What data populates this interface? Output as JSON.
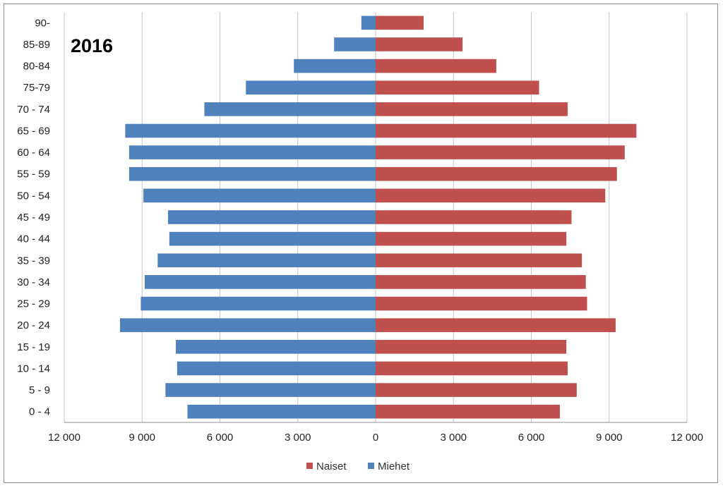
{
  "chart_data": {
    "type": "bar",
    "orientation": "horizontal-population-pyramid",
    "year_label": "2016",
    "categories": [
      "0 - 4",
      "5 - 9",
      "10 - 14",
      "15 - 19",
      "20 - 24",
      "25 - 29",
      "30 - 34",
      "35 - 39",
      "40 - 44",
      "45 - 49",
      "50 - 54",
      "55 - 59",
      "60 - 64",
      "65 - 69",
      "70 - 74",
      "75-79",
      "80-84",
      "85-89",
      "90-"
    ],
    "series": [
      {
        "name": "Miehet",
        "color": "#4f81bd",
        "side": "left",
        "values": [
          7250,
          8100,
          7650,
          7700,
          9850,
          9050,
          8900,
          8400,
          7950,
          8000,
          8950,
          9500,
          9500,
          9650,
          6600,
          5000,
          3150,
          1600,
          550
        ]
      },
      {
        "name": "Naiset",
        "color": "#c0504d",
        "side": "right",
        "values": [
          7100,
          7750,
          7400,
          7350,
          9250,
          8150,
          8100,
          7950,
          7350,
          7550,
          8850,
          9300,
          9600,
          10050,
          7400,
          6300,
          4650,
          3350,
          1850
        ]
      }
    ],
    "x_ticks": [
      "12 000",
      "9 000",
      "6 000",
      "3 000",
      "0",
      "3 000",
      "6 000",
      "9 000",
      "12 000"
    ],
    "xlim": [
      -12000,
      12000
    ],
    "grid": "vertical",
    "legend_position": "bottom-center",
    "legend": [
      "Naiset",
      "Miehet"
    ]
  }
}
